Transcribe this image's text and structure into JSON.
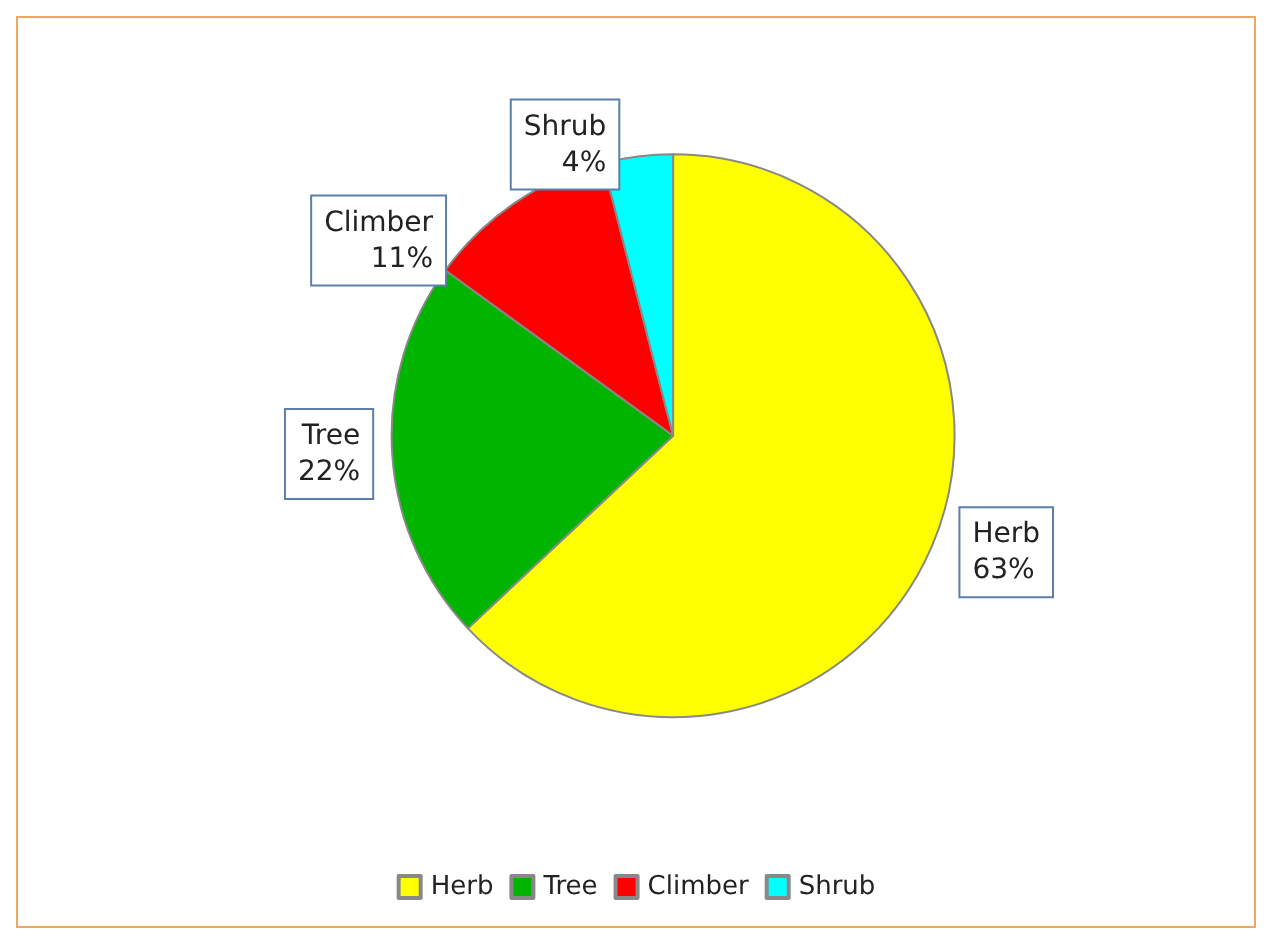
{
  "chart_data": {
    "type": "pie",
    "categories": [
      "Herb",
      "Tree",
      "Climber",
      "Shrub"
    ],
    "values": [
      63,
      22,
      11,
      4
    ],
    "value_labels": [
      "63%",
      "22%",
      "11%",
      "4%"
    ],
    "colors": [
      "#ffff00",
      "#00b400",
      "#ff0000",
      "#00ffff"
    ],
    "legend": "bottom"
  }
}
